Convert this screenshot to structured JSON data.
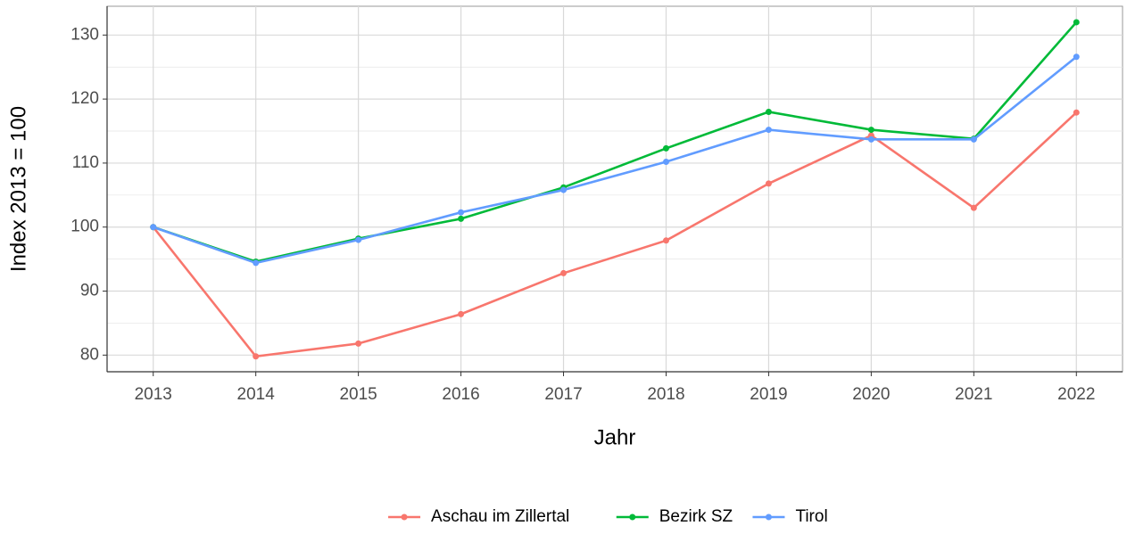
{
  "chart_data": {
    "type": "line",
    "x_label": "Jahr",
    "y_label": "Index  2013  = 100",
    "x": [
      2013,
      2014,
      2015,
      2016,
      2017,
      2018,
      2019,
      2020,
      2021,
      2022
    ],
    "series": [
      {
        "name": "Aschau im Zillertal",
        "color": "#F8766D",
        "values": [
          100,
          79.8,
          81.8,
          86.4,
          92.8,
          97.9,
          106.8,
          114.3,
          103.0,
          117.9
        ]
      },
      {
        "name": "Bezirk SZ",
        "color": "#00BA38",
        "values": [
          100,
          94.6,
          98.2,
          101.3,
          106.2,
          112.3,
          118.0,
          115.2,
          113.8,
          132.0
        ]
      },
      {
        "name": "Tirol",
        "color": "#619CFF",
        "values": [
          100,
          94.4,
          98.0,
          102.3,
          105.8,
          110.2,
          115.2,
          113.7,
          113.7,
          126.6
        ]
      }
    ],
    "xlim": [
      2012.55,
      2022.45
    ],
    "xticks": [
      2013,
      2014,
      2015,
      2016,
      2017,
      2018,
      2019,
      2020,
      2021,
      2022
    ],
    "ylim": [
      77.4,
      134.5
    ],
    "yticks": [
      80,
      90,
      100,
      110,
      120,
      130
    ],
    "yminor_ticks": [
      85,
      95,
      105,
      115,
      125
    ],
    "grid": true,
    "legend": "bottom"
  }
}
